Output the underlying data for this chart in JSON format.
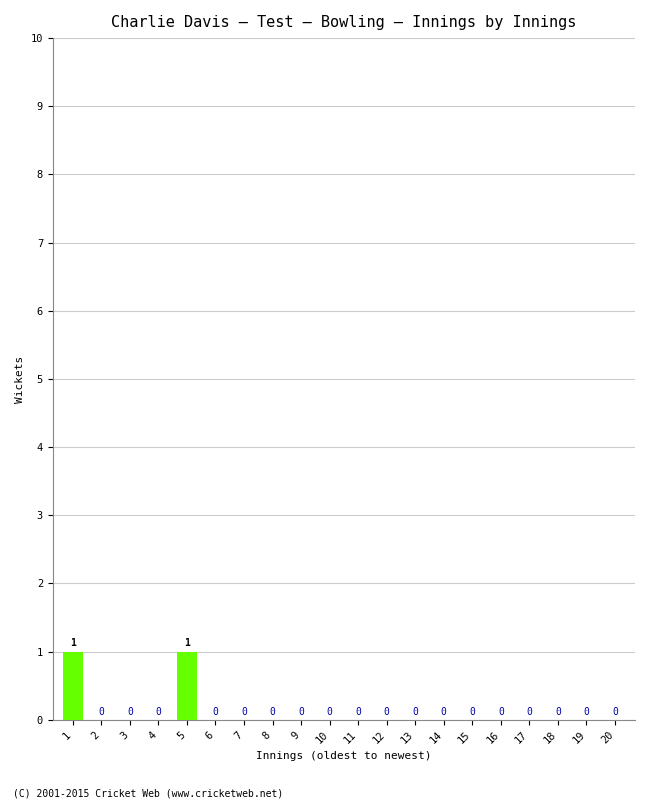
{
  "title": "Charlie Davis – Test – Bowling – Innings by Innings",
  "xlabel": "Innings (oldest to newest)",
  "ylabel": "Wickets",
  "footnote": "(C) 2001-2015 Cricket Web (www.cricketweb.net)",
  "num_innings": 20,
  "wickets": [
    1,
    0,
    0,
    0,
    1,
    0,
    0,
    0,
    0,
    0,
    0,
    0,
    0,
    0,
    0,
    0,
    0,
    0,
    0,
    0
  ],
  "bar_color": "#66ff00",
  "zero_color": "#0000aa",
  "ylim": [
    0,
    10
  ],
  "yticks": [
    0,
    1,
    2,
    3,
    4,
    5,
    6,
    7,
    8,
    9,
    10
  ],
  "background_color": "#ffffff",
  "grid_color": "#cccccc",
  "title_fontsize": 11,
  "label_fontsize": 8,
  "tick_fontsize": 7.5,
  "annotation_fontsize": 7
}
